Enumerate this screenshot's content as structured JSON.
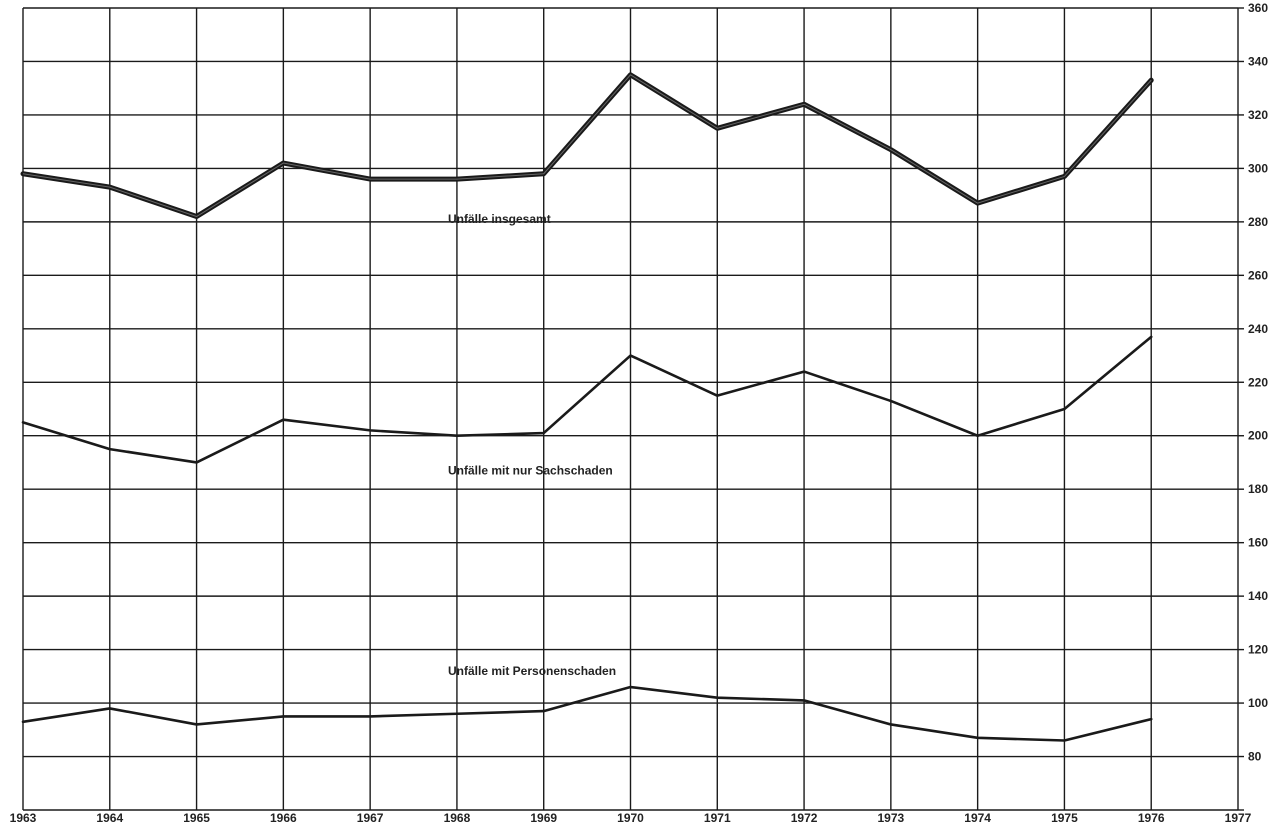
{
  "chart_data": {
    "type": "line",
    "x": [
      1963,
      1964,
      1965,
      1966,
      1967,
      1968,
      1969,
      1970,
      1971,
      1972,
      1973,
      1974,
      1975,
      1976
    ],
    "x_ticks": [
      "1963",
      "1964",
      "1965",
      "1966",
      "1967",
      "1968",
      "1969",
      "1970",
      "1971",
      "1972",
      "1973",
      "1974",
      "1975",
      "1976",
      "1977"
    ],
    "y_ticks": [
      "80",
      "100",
      "120",
      "140",
      "160",
      "180",
      "200",
      "220",
      "240",
      "260",
      "280",
      "300",
      "320",
      "340",
      "360"
    ],
    "xlim": [
      1963,
      1977
    ],
    "ylim": [
      60,
      360
    ],
    "y_axis_side": "right",
    "grid": true,
    "series": [
      {
        "name": "Unfälle insgesamt",
        "values": [
          298,
          293,
          282,
          302,
          296,
          296,
          298,
          335,
          315,
          324,
          307,
          287,
          297,
          333
        ],
        "color": "#1a1a1a"
      },
      {
        "name": "Unfälle mit nur Sachschaden",
        "values": [
          205,
          195,
          190,
          206,
          202,
          200,
          201,
          230,
          215,
          224,
          213,
          200,
          210,
          237
        ],
        "color": "#1a1a1a"
      },
      {
        "name": "Unfälle mit Personenschaden",
        "values": [
          93,
          98,
          92,
          95,
          95,
          96,
          97,
          106,
          102,
          101,
          92,
          87,
          86,
          94
        ],
        "color": "#1a1a1a"
      }
    ]
  }
}
